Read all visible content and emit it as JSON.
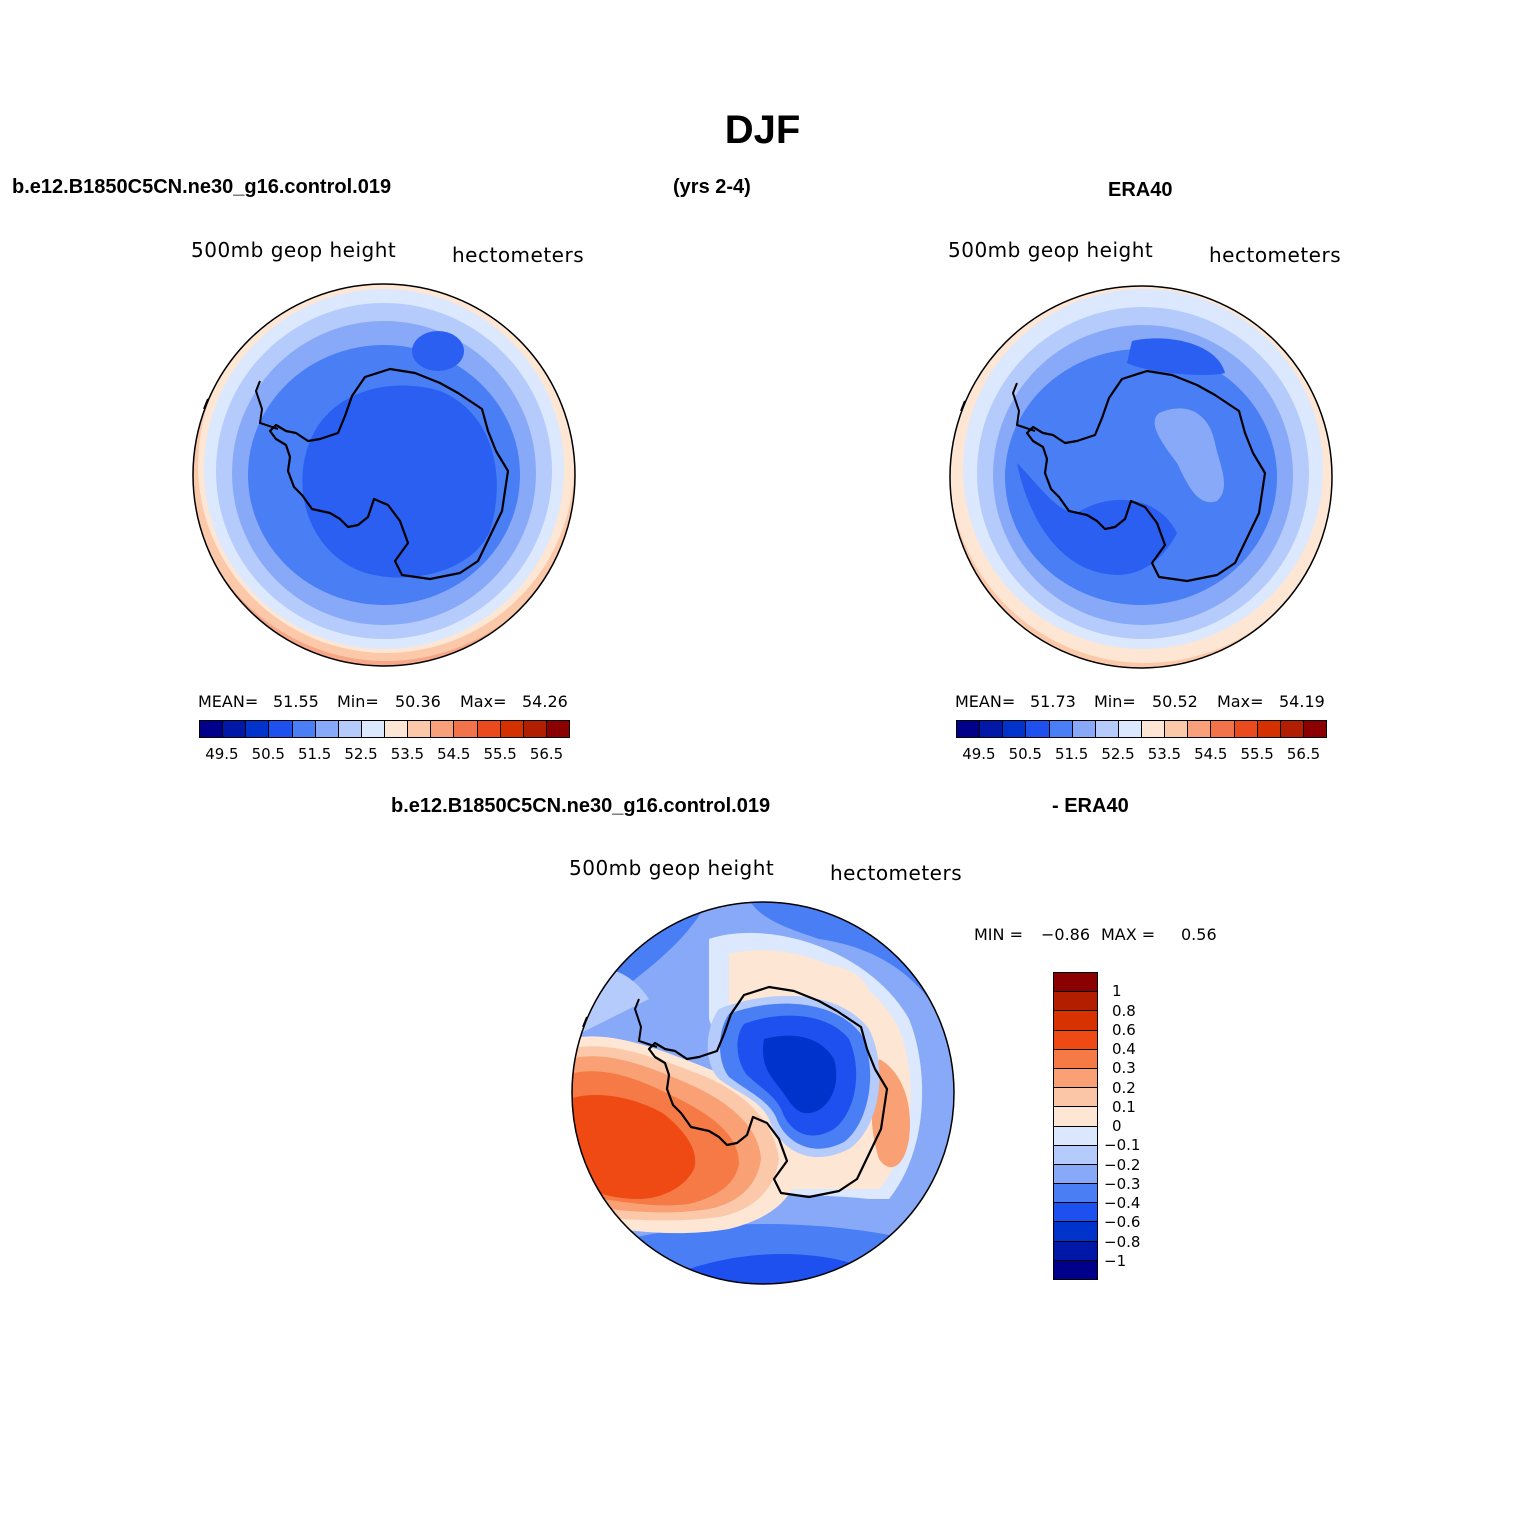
{
  "title": "DJF",
  "header": {
    "case_name": "b.e12.B1850C5CN.ne30_g16.control.019",
    "years": "(yrs 2-4)",
    "obs_name": "ERA40",
    "diff_case": "b.e12.B1850C5CN.ne30_g16.control.019",
    "diff_obs": "- ERA40"
  },
  "panels": {
    "model": {
      "variable": "500mb geop height",
      "units": "hectometers",
      "mean_label": "MEAN=",
      "mean": "51.55",
      "min_label": "Min=",
      "min": "50.36",
      "max_label": "Max=",
      "max": "54.26"
    },
    "obs": {
      "variable": "500mb geop height",
      "units": "hectometers",
      "mean_label": "MEAN=",
      "mean": "51.73",
      "min_label": "Min=",
      "min": "50.52",
      "max_label": "Max=",
      "max": "54.19"
    },
    "diff": {
      "variable": "500mb geop height",
      "units": "hectometers",
      "min_label": "MIN =",
      "min": "−0.86",
      "max_label": "MAX =",
      "max": "0.56"
    }
  },
  "colorbar_abs": {
    "colors": [
      "#00008b",
      "#0018a8",
      "#0033cc",
      "#1e50f0",
      "#4a7ef5",
      "#87a9f8",
      "#b4cbfb",
      "#dbe8fd",
      "#fde6d4",
      "#fbc8aa",
      "#f7a07a",
      "#f2724a",
      "#eb4a1e",
      "#d43000",
      "#b11e00",
      "#8b0000"
    ],
    "tick_labels": [
      "49.5",
      "50.5",
      "51.5",
      "52.5",
      "53.5",
      "54.5",
      "55.5",
      "56.5"
    ]
  },
  "colorbar_diff": {
    "colors_top_to_bottom": [
      "#8b0000",
      "#b41e00",
      "#d83200",
      "#f04a14",
      "#f57a45",
      "#f9a074",
      "#fbc5a8",
      "#fde6d4",
      "#dbe8fd",
      "#b4cbfb",
      "#87a9f8",
      "#4a7ef5",
      "#1e50f0",
      "#0033cc",
      "#0018a8",
      "#00008b"
    ],
    "tick_labels": [
      "1",
      "0.8",
      "0.6",
      "0.4",
      "0.3",
      "0.2",
      "0.1",
      "0",
      "−0.1",
      "−0.2",
      "−0.3",
      "−0.4",
      "−0.6",
      "−0.8",
      "−1"
    ]
  }
}
